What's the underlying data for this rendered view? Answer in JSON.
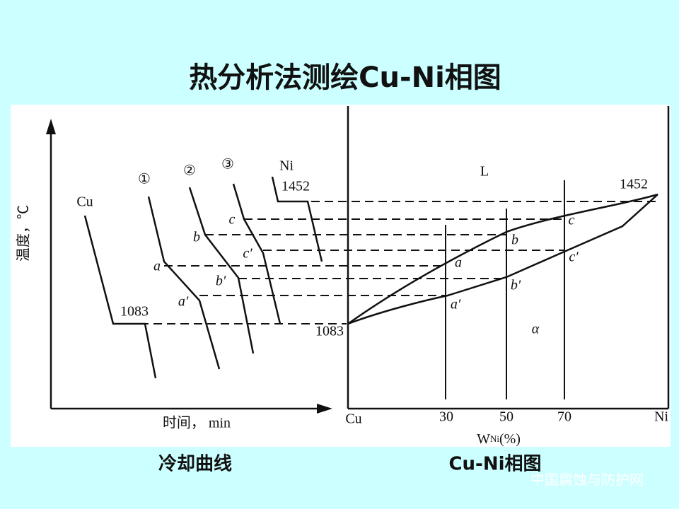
{
  "title": "热分析法测绘Cu-Ni相图",
  "cooling_curves": {
    "y_axis_label": "温度，℃",
    "x_axis_label": "时间， min",
    "cu_label": "Cu",
    "ni_label": "Ni",
    "curve_labels": [
      "①",
      "②",
      "③"
    ],
    "cu_temp": "1083",
    "ni_temp": "1452",
    "points": [
      "c",
      "b",
      "c′",
      "a",
      "b′",
      "a′"
    ],
    "caption": "冷却曲线"
  },
  "phase_diagram": {
    "liquid_label": "L",
    "solid_label": "α",
    "ni_temp": "1452",
    "cu_temp": "1083",
    "points": [
      "c",
      "b",
      "c′",
      "a",
      "b′",
      "a′"
    ],
    "x_labels": [
      "Cu",
      "30",
      "50",
      "70",
      "Ni"
    ],
    "x_axis_label": {
      "symbol": "W",
      "subscript": "Ni",
      "unit": "(%)"
    },
    "caption": "Cu-Ni相图"
  },
  "watermark": "中国腐蚀与防护网"
}
